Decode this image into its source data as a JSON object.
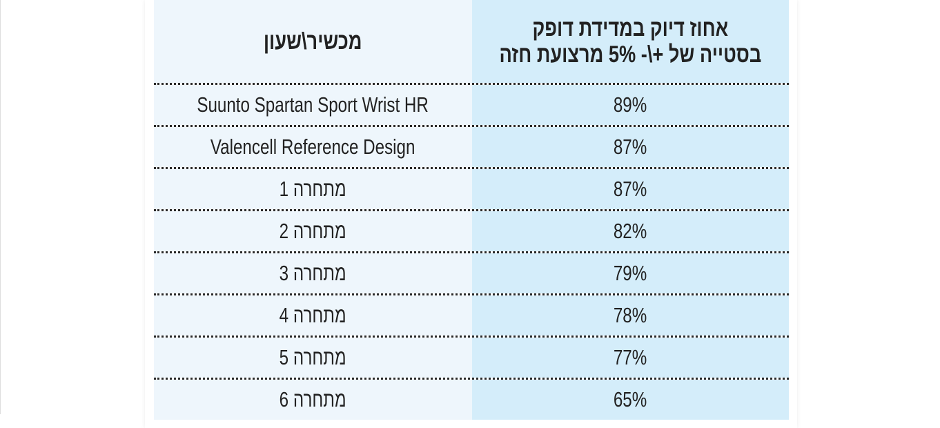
{
  "table": {
    "headers": {
      "device": "מכשיר\\שעון",
      "accuracy_line1": "אחוז דיוק במדידת דופק",
      "accuracy_line2": "בסטייה של +\\- 5% מרצועת חזה"
    },
    "rows": [
      {
        "device": "Suunto Spartan Sport Wrist HR",
        "accuracy": "89%"
      },
      {
        "device": "Valencell Reference Design",
        "accuracy": "87%"
      },
      {
        "device": "מתחרה 1",
        "accuracy": "87%"
      },
      {
        "device": "מתחרה 2",
        "accuracy": "82%"
      },
      {
        "device": "מתחרה 3",
        "accuracy": "79%"
      },
      {
        "device": "מתחרה 4",
        "accuracy": "78%"
      },
      {
        "device": "מתחרה 5",
        "accuracy": "77%"
      },
      {
        "device": "מתחרה 6",
        "accuracy": "65%"
      }
    ],
    "colors": {
      "device_col": "#eef6fc",
      "accuracy_col": "#d4edfa"
    }
  }
}
